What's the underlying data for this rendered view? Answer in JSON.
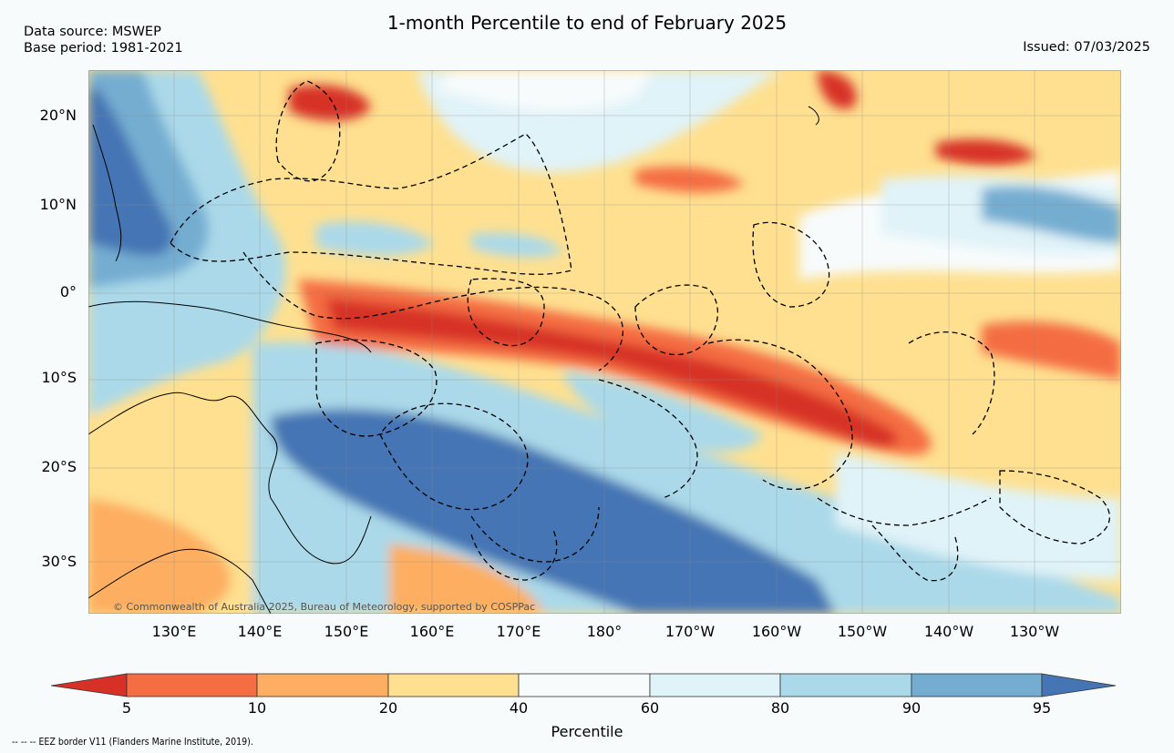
{
  "header": {
    "title": "1-month Percentile to end of February 2025",
    "source_line1": "Data source: MSWEP",
    "source_line2": "Base period: 1981-2021",
    "issued": "Issued: 07/03/2025"
  },
  "map": {
    "lat_labels": [
      "20°N",
      "10°N",
      "0°",
      "10°S",
      "20°S",
      "30°S"
    ],
    "lon_labels": [
      "130°E",
      "140°E",
      "150°E",
      "160°E",
      "170°E",
      "180°",
      "170°W",
      "160°W",
      "150°W",
      "140°W",
      "130°W"
    ],
    "copyright": "© Commonwealth of Australia 2025, Bureau of Meteorology, supported by COSPPac",
    "colors": {
      "p_lt5": "#d73027",
      "p5_10": "#f46d43",
      "p10_20": "#fdae61",
      "p20_40": "#fee090",
      "p40_60": "#f7fbfc",
      "p60_80": "#e0f3f8",
      "p80_90": "#abd9e9",
      "p90_95": "#74add1",
      "p_gt95": "#4575b4"
    }
  },
  "colorbar": {
    "ticks": [
      "5",
      "10",
      "20",
      "40",
      "60",
      "80",
      "90",
      "95"
    ],
    "label": "Percentile"
  },
  "footer": {
    "eez_note": "--  --  -- EEZ border V11 (Flanders Marine Institute, 2019)."
  }
}
